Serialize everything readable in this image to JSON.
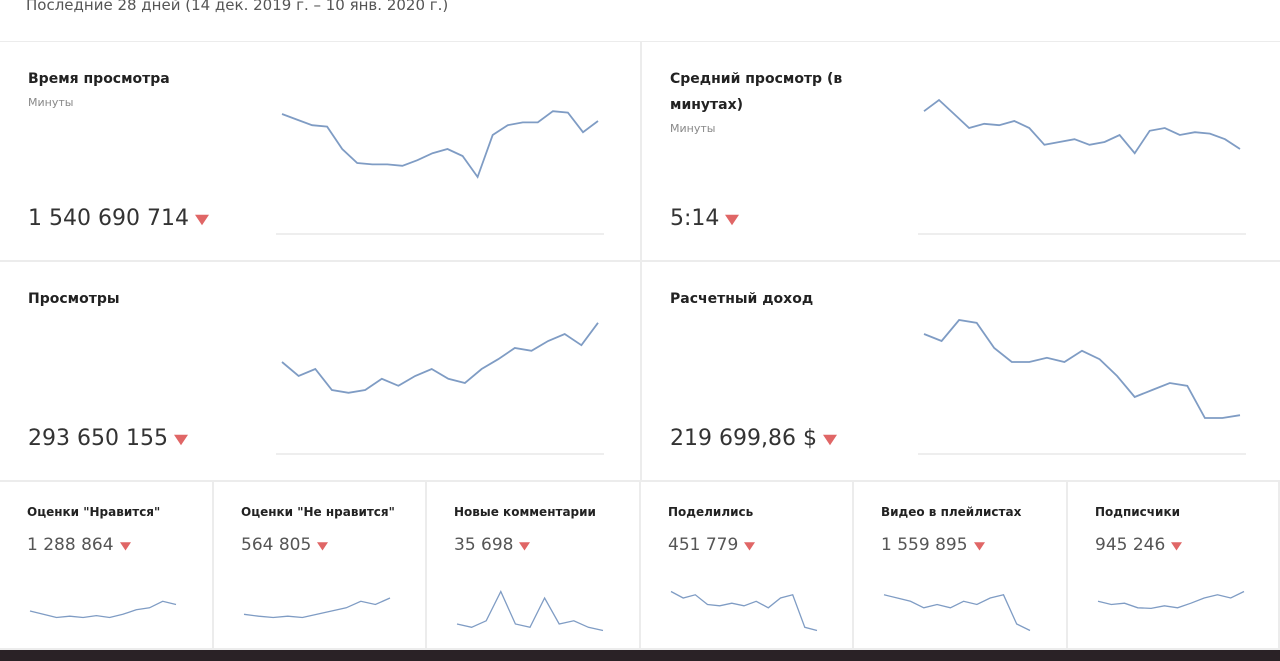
{
  "header": {
    "period": "Последние 28 дней (14 дек. 2019 г. – 10 янв. 2020 г.)"
  },
  "cards": [
    {
      "title": "Время просмотра",
      "subtitle": "Минуты",
      "value": "1 540 690 714",
      "trend": [
        70,
        66,
        62,
        61,
        45,
        35,
        34,
        34,
        33,
        37,
        42,
        45,
        40,
        25,
        55,
        62,
        64,
        64,
        72,
        71,
        57,
        65
      ]
    },
    {
      "title": "Средний просмотр (в минутах)",
      "subtitle": "Минуты",
      "value": "5:14",
      "trend": [
        72,
        80,
        70,
        60,
        63,
        62,
        65,
        60,
        48,
        50,
        52,
        48,
        50,
        55,
        42,
        58,
        60,
        55,
        57,
        56,
        52,
        45
      ]
    },
    {
      "title": "Просмотры",
      "value": "293 650 155",
      "trend": [
        50,
        40,
        45,
        30,
        28,
        30,
        38,
        33,
        40,
        45,
        38,
        35,
        45,
        52,
        60,
        58,
        65,
        70,
        62,
        78
      ]
    },
    {
      "title": "Расчетный доход",
      "value": "219 699,86 $",
      "trend": [
        70,
        65,
        80,
        78,
        60,
        50,
        50,
        53,
        50,
        58,
        52,
        40,
        25,
        30,
        35,
        33,
        10,
        10,
        12
      ]
    }
  ],
  "small_cards": [
    {
      "title": "Оценки \"Нравится\"",
      "value": "1 288 864",
      "trend": [
        40,
        35,
        30,
        32,
        30,
        33,
        30,
        35,
        42,
        45,
        55,
        50
      ]
    },
    {
      "title": "Оценки \"Не нравится\"",
      "value": "564 805",
      "trend": [
        35,
        32,
        30,
        32,
        30,
        35,
        40,
        45,
        55,
        50,
        60
      ]
    },
    {
      "title": "Новые комментарии",
      "value": "35 698",
      "trend": [
        20,
        15,
        25,
        70,
        20,
        15,
        60,
        20,
        25,
        15,
        10
      ]
    },
    {
      "title": "Поделились",
      "value": "451 779",
      "trend": [
        70,
        60,
        65,
        50,
        48,
        52,
        48,
        55,
        45,
        60,
        65,
        15,
        10
      ]
    },
    {
      "title": "Видео в плейлистах",
      "value": "1 559 895",
      "trend": [
        65,
        60,
        55,
        45,
        50,
        45,
        55,
        50,
        60,
        65,
        20,
        10
      ]
    },
    {
      "title": "Подписчики",
      "value": "945 246",
      "trend": [
        55,
        50,
        52,
        45,
        44,
        48,
        45,
        52,
        60,
        65,
        60,
        70
      ]
    }
  ]
}
